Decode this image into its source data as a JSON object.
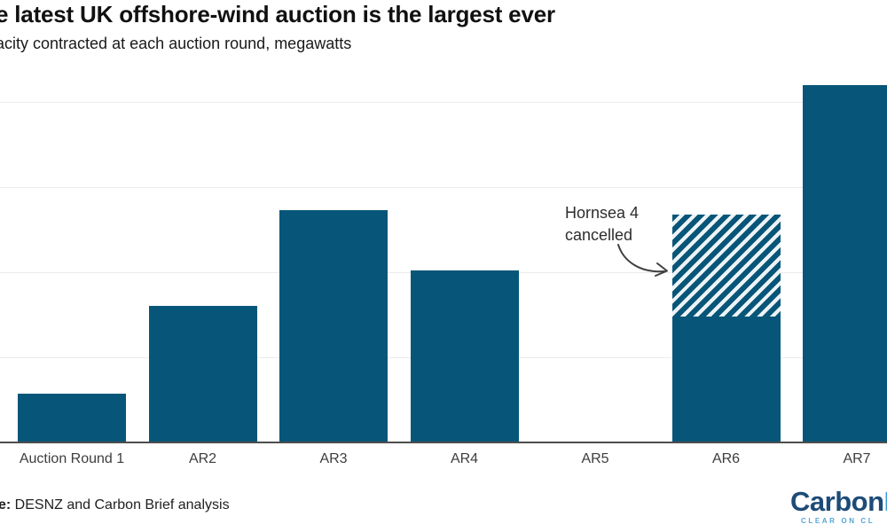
{
  "header": {
    "title": "e latest UK offshore-wind auction is the largest ever",
    "subtitle": "acity contracted at each auction round, megawatts"
  },
  "annotation": {
    "line1": "Hornsea 4",
    "line2": "cancelled"
  },
  "footer": {
    "source_bold": "e:",
    "source_text": " DESNZ and Carbon Brief analysis"
  },
  "logo": {
    "word_dark": "Carbon",
    "word_light": "B",
    "tagline": "CLEAR ON CL"
  },
  "colors": {
    "bar": "#075679",
    "hatch_gap": "#eef3f6",
    "axis_line": "#4d4d4d",
    "gridline": "#ebebeb",
    "logo_dark": "#1d4b77",
    "logo_light": "#3e9bd4",
    "tagline": "#54a5d6"
  },
  "chart_data": {
    "type": "bar",
    "title": "e latest UK offshore-wind auction is the largest ever",
    "subtitle": "acity contracted at each auction round, megawatts",
    "ylabel": "megawatts",
    "categories": [
      "Auction Round 1",
      "AR2",
      "AR3",
      "AR4",
      "AR5",
      "AR6",
      "AR7"
    ],
    "values_mw": [
      1150,
      3200,
      5450,
      4050,
      0,
      5350,
      8400
    ],
    "ar6_segments": {
      "remaining_mw": 2950,
      "hornsea4_cancelled_mw": 2400
    },
    "hatched_segment_label": "Hornsea 4 cancelled",
    "hatched_category": "AR6",
    "ylim_mw": [
      0,
      8600
    ],
    "gridline_interval_mw": 2000,
    "y_axis_labels_visible": false,
    "grid": true,
    "legend": false,
    "values_are_estimates": true
  }
}
